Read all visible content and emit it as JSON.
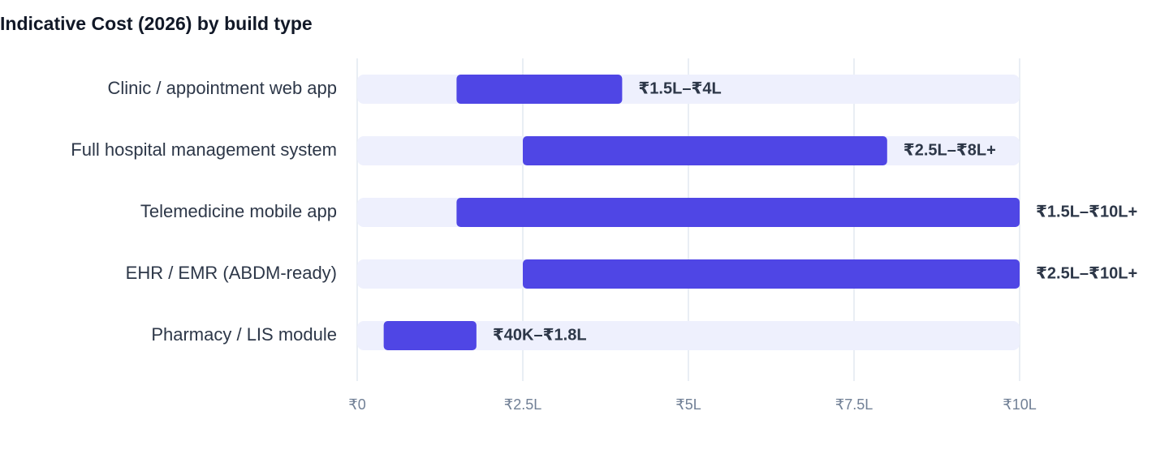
{
  "chart_data": {
    "type": "range",
    "title": "Indicative Cost (2026) by build type",
    "categories": [
      "Clinic / appointment web app",
      "Full hospital management system",
      "Telemedicine mobile app",
      "EHR / EMR (ABDM-ready)",
      "Pharmacy / LIS module"
    ],
    "series": [
      {
        "low": [
          1.5,
          2.5,
          1.5,
          2.5,
          0.4
        ],
        "high": [
          4,
          8,
          10,
          10,
          1.8
        ],
        "value_labels": [
          "₹1.5L–₹4L",
          "₹2.5L–₹8L+",
          "₹1.5L–₹10L+",
          "₹2.5L–₹10L+",
          "₹40K–₹1.8L"
        ],
        "color": "#4f46e5"
      }
    ],
    "xlim": [
      0,
      10
    ],
    "xticks": [
      {
        "value": 0,
        "label": "₹0"
      },
      {
        "value": 2.5,
        "label": "₹2.5L"
      },
      {
        "value": 5,
        "label": "₹5L"
      },
      {
        "value": 7.5,
        "label": "₹7.5L"
      },
      {
        "value": 10,
        "label": "₹10L"
      }
    ],
    "grid": true
  }
}
